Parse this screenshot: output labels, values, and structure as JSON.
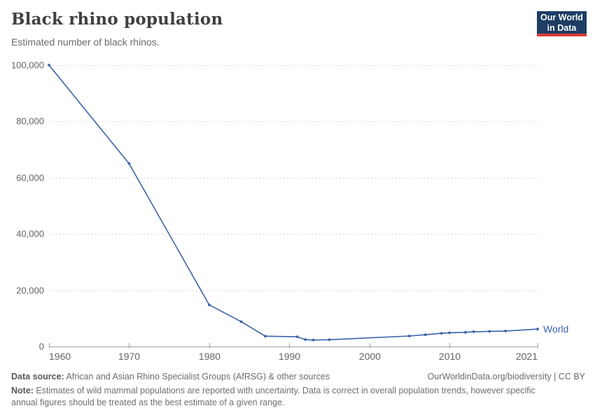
{
  "header": {
    "title": "Black rhino population",
    "subtitle": "Estimated number of black rhinos.",
    "logo": {
      "line1": "Our World",
      "line2": "in Data",
      "bg_color": "#1d3d63",
      "accent_color": "#d93a34"
    }
  },
  "chart_data": {
    "type": "line",
    "title": "Black rhino population",
    "xlabel": "",
    "ylabel": "",
    "xlim": [
      1960,
      2021
    ],
    "ylim": [
      0,
      100000
    ],
    "x_ticks": [
      1960,
      1970,
      1980,
      1990,
      2000,
      2010,
      2021
    ],
    "y_ticks": [
      0,
      20000,
      40000,
      60000,
      80000,
      100000
    ],
    "grid": "horizontal-dashed",
    "legend_position": "end-of-line-label",
    "series": [
      {
        "name": "World",
        "color": "#3b62aa",
        "points": [
          [
            1960,
            100000
          ],
          [
            1970,
            65000
          ],
          [
            1980,
            14785
          ],
          [
            1984,
            8800
          ],
          [
            1987,
            3665
          ],
          [
            1991,
            3450
          ],
          [
            1992,
            2475
          ],
          [
            1993,
            2300
          ],
          [
            1995,
            2410
          ],
          [
            2005,
            3726
          ],
          [
            2007,
            4180
          ],
          [
            2009,
            4700
          ],
          [
            2010,
            4880
          ],
          [
            2012,
            5055
          ],
          [
            2013,
            5250
          ],
          [
            2015,
            5366
          ],
          [
            2017,
            5495
          ],
          [
            2021,
            6195
          ]
        ]
      }
    ]
  },
  "footer": {
    "data_source_label": "Data source:",
    "data_source_value": " African and Asian Rhino Specialist Groups (AfRSG) & other sources",
    "attribution": "OurWorldinData.org/biodiversity | CC BY",
    "note_label": "Note:",
    "note_value": " Estimates of wild mammal populations are reported with uncertainty. Data is correct in overall population trends, however specific annual figures should be treated as the best estimate of a given range."
  },
  "colors": {
    "line": "#3b62aa",
    "gridline": "#dadada",
    "axis": "#a0a0a0",
    "tick_label": "#636363"
  }
}
